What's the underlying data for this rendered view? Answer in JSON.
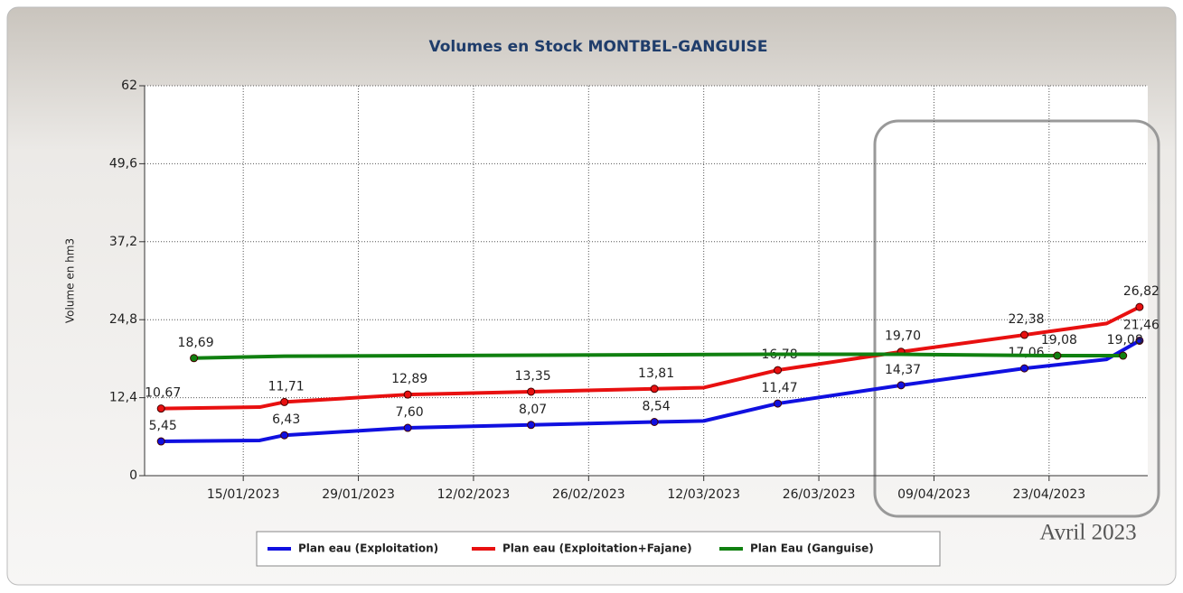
{
  "chart_data": {
    "type": "line",
    "title": "Volumes en Stock MONTBEL-GANGUISE",
    "y_label": "Volume en hm3",
    "annotation": "Avril 2023",
    "xlim": [
      "2023-01-03",
      "2023-05-05"
    ],
    "xticks": [
      {
        "value": "2023-01-15",
        "label": "15/01/2023"
      },
      {
        "value": "2023-01-29",
        "label": "29/01/2023"
      },
      {
        "value": "2023-02-12",
        "label": "12/02/2023"
      },
      {
        "value": "2023-02-26",
        "label": "26/02/2023"
      },
      {
        "value": "2023-03-12",
        "label": "12/03/2023"
      },
      {
        "value": "2023-03-26",
        "label": "26/03/2023"
      },
      {
        "value": "2023-04-09",
        "label": "09/04/2023"
      },
      {
        "value": "2023-04-23",
        "label": "23/04/2023"
      }
    ],
    "ylim": [
      0,
      62
    ],
    "yticks": [
      0,
      {
        "value": 12.4,
        "label": "12,4"
      },
      {
        "value": 24.8,
        "label": "24,8"
      },
      {
        "value": 37.2,
        "label": "37,2"
      },
      {
        "value": 49.6,
        "label": "49,6"
      },
      62
    ],
    "grid": true,
    "legend": "bottom",
    "series": [
      {
        "name": "Plan eau (Exploitation)",
        "color": "#1010e0",
        "x": [
          "2023-01-05",
          "2023-01-17",
          "2023-01-20",
          "2023-02-04",
          "2023-02-19",
          "2023-03-06",
          "2023-03-12",
          "2023-03-21",
          "2023-04-05",
          "2023-04-20",
          "2023-04-30",
          "2023-05-04"
        ],
        "values": [
          5.45,
          5.6,
          6.43,
          7.6,
          8.07,
          8.54,
          8.7,
          11.47,
          14.37,
          17.06,
          18.5,
          21.46
        ],
        "value_labels": [
          "5,45",
          null,
          "6,43",
          "7,60",
          "8,07",
          "8,54",
          null,
          "11,47",
          "14,37",
          "17,06",
          null,
          "21,46"
        ]
      },
      {
        "name": "Plan eau (Exploitation+Fajane)",
        "color": "#e81010",
        "x": [
          "2023-01-05",
          "2023-01-17",
          "2023-01-20",
          "2023-02-04",
          "2023-02-19",
          "2023-03-06",
          "2023-03-12",
          "2023-03-21",
          "2023-04-05",
          "2023-04-20",
          "2023-04-30",
          "2023-05-04"
        ],
        "values": [
          10.67,
          10.9,
          11.71,
          12.89,
          13.35,
          13.81,
          14.0,
          16.78,
          19.7,
          22.38,
          24.2,
          26.82
        ],
        "value_labels": [
          "10,67",
          null,
          "11,71",
          "12,89",
          "13,35",
          "13,81",
          null,
          "16,78",
          "19,70",
          "22,38",
          null,
          "26,82"
        ]
      },
      {
        "name": "Plan Eau (Ganguise)",
        "color": "#108010",
        "x": [
          "2023-01-09",
          "2023-01-20",
          "2023-03-20",
          "2023-04-05",
          "2023-04-24",
          "2023-05-02"
        ],
        "values": [
          18.69,
          19.0,
          19.3,
          19.3,
          19.08,
          19.08
        ],
        "value_labels": [
          "18,69",
          null,
          null,
          null,
          "19,08",
          "19,08"
        ]
      }
    ]
  }
}
